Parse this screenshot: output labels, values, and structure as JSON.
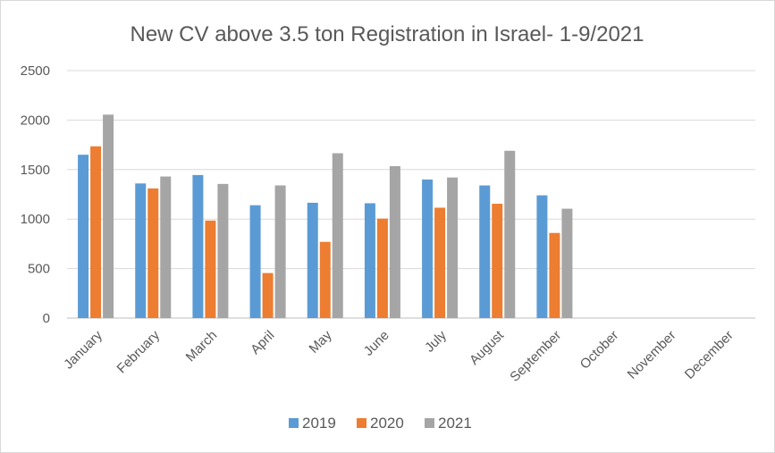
{
  "chart_data": {
    "type": "bar",
    "title": "New CV above 3.5 ton Registration in Israel- 1-9/2021",
    "xlabel": "",
    "ylabel": "",
    "categories": [
      "January",
      "February",
      "March",
      "April",
      "May",
      "June",
      "July",
      "August",
      "September",
      "October",
      "November",
      "December"
    ],
    "series": [
      {
        "name": "2019",
        "color": "#5b9bd5",
        "values": [
          1650,
          1360,
          1445,
          1140,
          1165,
          1160,
          1400,
          1340,
          1240,
          null,
          null,
          null
        ]
      },
      {
        "name": "2020",
        "color": "#ed7d31",
        "values": [
          1735,
          1310,
          985,
          455,
          770,
          1005,
          1115,
          1155,
          860,
          null,
          null,
          null
        ]
      },
      {
        "name": "2021",
        "color": "#a5a5a5",
        "values": [
          2055,
          1430,
          1355,
          1340,
          1665,
          1535,
          1420,
          1690,
          1105,
          null,
          null,
          null
        ]
      }
    ],
    "ylim": [
      0,
      2500
    ],
    "yticks": [
      0,
      500,
      1000,
      1500,
      2000,
      2500
    ],
    "grid": true,
    "legend": "bottom"
  }
}
